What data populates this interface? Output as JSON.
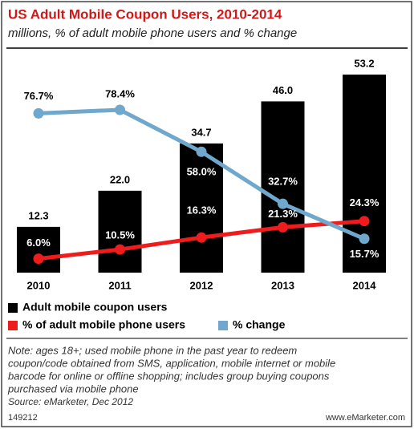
{
  "chart_data": {
    "type": "bar",
    "title": "US Adult Mobile Coupon Users, 2010-2014",
    "subtitle": "millions, % of adult mobile phone users and % change",
    "categories": [
      "2010",
      "2011",
      "2012",
      "2013",
      "2014"
    ],
    "series": [
      {
        "name": "Adult mobile coupon users",
        "color": "#000000",
        "values": [
          12.3,
          22.0,
          34.7,
          46.0,
          53.2
        ],
        "value_labels": [
          "12.3",
          "22.0",
          "34.7",
          "46.0",
          "53.2"
        ]
      },
      {
        "name": "% of adult mobile phone users",
        "type": "line",
        "axis": "y2",
        "color": "#ee1c1c",
        "values": [
          6.0,
          10.5,
          16.3,
          21.3,
          24.3
        ],
        "value_labels": [
          "6.0%",
          "10.5%",
          "16.3%",
          "21.3%",
          "24.3%"
        ]
      },
      {
        "name": "% change",
        "type": "line",
        "axis": "y2",
        "color": "#6fa8cc",
        "values": [
          76.7,
          78.4,
          58.0,
          32.7,
          15.7
        ],
        "value_labels": [
          "76.7%",
          "78.4%",
          "58.0%",
          "32.7%",
          "15.7%"
        ]
      }
    ],
    "notes": [
      "Note: ages 18+; used mobile phone in the past year to redeem",
      "coupon/code obtained from SMS, application, mobile internet or mobile",
      "barcode for online or offline shopping; includes group buying coupons",
      "purchased via mobile phone"
    ],
    "source": "Source: eMarketer, Dec 2012",
    "chart_id": "149212",
    "credit": "www.eMarketer.com"
  }
}
